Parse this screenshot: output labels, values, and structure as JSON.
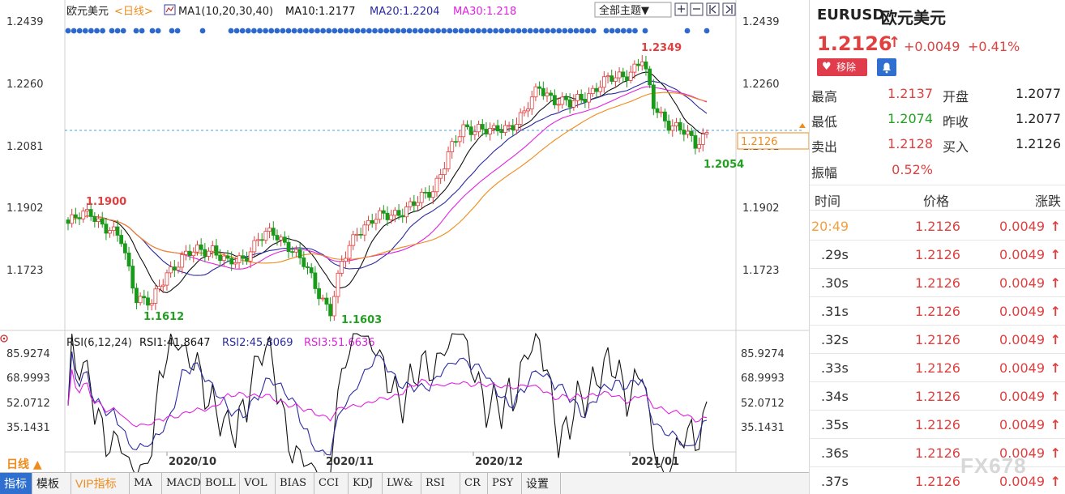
{
  "chart_header": {
    "symbol": "欧元美元",
    "period_link": "<日线>",
    "ma_label": "MA1(10,20,30,40)",
    "ma10": "MA10:1.2177",
    "ma20": "MA20:1.2204",
    "ma30": "MA30:1.218",
    "theme_button": "全部主题▼"
  },
  "rsi_header": {
    "label": "RSI(6,12,24)",
    "rsi1": "RSI1:41.8647",
    "rsi2": "RSI2:45.8069",
    "rsi3": "RSI3:51.6636"
  },
  "colors": {
    "up": "#e04040",
    "down": "#1a9a1a",
    "ma10": "#111111",
    "ma20": "#2b2ba0",
    "ma30": "#e022e0",
    "ma40": "#f08a1a",
    "accent": "#f08a1a"
  },
  "price_axis": {
    "left_ticks": [
      "1.2439",
      "1.2260",
      "1.2081",
      "1.1902",
      "1.1723"
    ],
    "right_ticks": [
      "1.2439",
      "1.2260",
      "1.2081",
      "1.1902",
      "1.1723"
    ],
    "current_price_label": "1.2126"
  },
  "rsi_axis": {
    "left_ticks": [
      "85.9274",
      "68.9993",
      "52.0712",
      "35.1431"
    ],
    "right_ticks": [
      "85.9274",
      "68.9993",
      "52.0712",
      "35.1431"
    ]
  },
  "annotations": {
    "high": "1.2349",
    "low_right": "1.2054",
    "left_high": "1.1900",
    "low1": "1.1612",
    "low2": "1.1603"
  },
  "date_axis": [
    "2020/10",
    "2020/11",
    "2020/12",
    "2021/01"
  ],
  "bottom_period": "日线 ▲",
  "toolbar_tabs": [
    "指标",
    "模板",
    "VIP指标",
    "MA",
    "MACD",
    "BOLL",
    "VOL",
    "BIAS",
    "CCI",
    "KDJ",
    "LW&",
    "RSI",
    "CR",
    "PSY",
    "设置"
  ],
  "quote": {
    "code": "EURUSD",
    "name": "欧元美元",
    "price": "1.2126",
    "change": "+0.0049",
    "change_pct": "+0.41%",
    "remove_btn": "移除",
    "stats": [
      {
        "label": "最高",
        "value": "1.2137",
        "label2": "开盘",
        "value2": "1.2077"
      },
      {
        "label": "最低",
        "value": "1.2074",
        "label2": "昨收",
        "value2": "1.2077"
      },
      {
        "label": "卖出",
        "value": "1.2128",
        "label2": "买入",
        "value2": "1.2126"
      },
      {
        "label": "振幅",
        "value": "0.52%",
        "label2": "",
        "value2": ""
      }
    ],
    "table_header": [
      "时间",
      "价格",
      "涨跌"
    ],
    "ticks": [
      {
        "time": "20:49",
        "price": "1.2126",
        "chg": "0.0049"
      },
      {
        "time": ".29s",
        "price": "1.2126",
        "chg": "0.0049"
      },
      {
        "time": ".30s",
        "price": "1.2126",
        "chg": "0.0049"
      },
      {
        "time": ".31s",
        "price": "1.2126",
        "chg": "0.0049"
      },
      {
        "time": ".32s",
        "price": "1.2126",
        "chg": "0.0049"
      },
      {
        "time": ".33s",
        "price": "1.2126",
        "chg": "0.0049"
      },
      {
        "time": ".34s",
        "price": "1.2126",
        "chg": "0.0049"
      },
      {
        "time": ".35s",
        "price": "1.2126",
        "chg": "0.0049"
      },
      {
        "time": ".36s",
        "price": "1.2126",
        "chg": "0.0049"
      },
      {
        "time": ".37s",
        "price": "1.2126",
        "chg": "0.0049"
      }
    ]
  },
  "watermark": "FX678"
}
